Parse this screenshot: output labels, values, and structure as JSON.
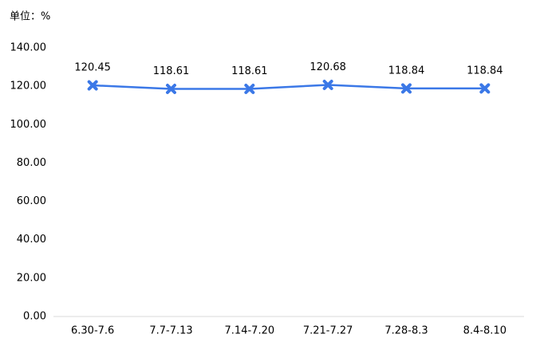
{
  "chart_data": {
    "type": "line",
    "unit_label": "单位：%",
    "categories": [
      "6.30-7.6",
      "7.7-7.13",
      "7.14-7.20",
      "7.21-7.27",
      "7.28-8.3",
      "8.4-8.10"
    ],
    "values": [
      120.45,
      118.61,
      118.61,
      120.68,
      118.84,
      118.84
    ],
    "color": "#3b78e7",
    "ylim": [
      0,
      140
    ],
    "yticks": [
      {
        "value": 0,
        "label": "0.00"
      },
      {
        "value": 20,
        "label": "20.00"
      },
      {
        "value": 40,
        "label": "40.00"
      },
      {
        "value": 60,
        "label": "60.00"
      },
      {
        "value": 80,
        "label": "80.00"
      },
      {
        "value": 100,
        "label": "100.00"
      },
      {
        "value": 120,
        "label": "120.00"
      },
      {
        "value": 140,
        "label": "140.00"
      }
    ]
  }
}
